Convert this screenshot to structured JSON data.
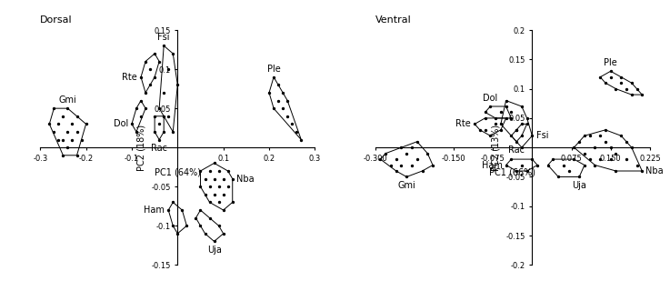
{
  "chart_data": [
    {
      "type": "scatter",
      "title": "Dorsal",
      "x_label": "PC1 (64%)",
      "y_label": "PC2 (18%)",
      "xlim": [
        -0.3,
        0.3
      ],
      "ylim": [
        -0.15,
        0.15
      ],
      "xticks": [
        -0.3,
        -0.2,
        -0.1,
        0.1,
        0.2,
        0.3
      ],
      "yticks": [
        -0.15,
        -0.1,
        -0.05,
        0.05,
        0.1,
        0.15
      ],
      "grid": false,
      "series": [
        {
          "name": "Gmi",
          "color": "#000000",
          "values": [
            [
              -0.27,
              0.02
            ],
            [
              -0.26,
              0.03
            ],
            [
              -0.25,
              0.01
            ],
            [
              -0.24,
              0.02
            ],
            [
              -0.23,
              0.03
            ],
            [
              -0.22,
              0.02
            ],
            [
              -0.25,
              0.04
            ],
            [
              -0.24,
              0.0
            ],
            [
              -0.23,
              0.01
            ],
            [
              -0.26,
              0.01
            ],
            [
              -0.22,
              0.04
            ],
            [
              -0.21,
              0.01
            ],
            [
              -0.28,
              0.03
            ],
            [
              -0.24,
              0.05
            ],
            [
              -0.25,
              -0.01
            ],
            [
              -0.22,
              -0.01
            ],
            [
              -0.2,
              0.03
            ],
            [
              -0.27,
              0.05
            ]
          ]
        },
        {
          "name": "Rte",
          "color": "#000000",
          "values": [
            [
              -0.08,
              0.09
            ],
            [
              -0.07,
              0.11
            ],
            [
              -0.06,
              0.1
            ],
            [
              -0.05,
              0.12
            ],
            [
              -0.06,
              0.08
            ],
            [
              -0.07,
              0.07
            ],
            [
              -0.05,
              0.09
            ],
            [
              -0.04,
              0.11
            ]
          ]
        },
        {
          "name": "Dol",
          "color": "#000000",
          "values": [
            [
              -0.1,
              0.03
            ],
            [
              -0.09,
              0.05
            ],
            [
              -0.08,
              0.06
            ],
            [
              -0.09,
              0.02
            ],
            [
              -0.08,
              0.04
            ],
            [
              -0.07,
              0.05
            ]
          ]
        },
        {
          "name": "Fsi",
          "color": "#000000",
          "values": [
            [
              -0.03,
              0.13
            ],
            [
              -0.01,
              0.12
            ],
            [
              -0.02,
              0.1
            ],
            [
              -0.03,
              0.07
            ],
            [
              0.0,
              0.08
            ],
            [
              -0.02,
              0.04
            ],
            [
              -0.01,
              0.02
            ],
            [
              -0.04,
              0.05
            ]
          ]
        },
        {
          "name": "Rac",
          "color": "#000000",
          "values": [
            [
              -0.05,
              0.02
            ],
            [
              -0.04,
              0.03
            ],
            [
              -0.03,
              0.02
            ],
            [
              -0.04,
              0.01
            ],
            [
              -0.05,
              0.04
            ],
            [
              -0.03,
              0.04
            ]
          ]
        },
        {
          "name": "Ple",
          "color": "#000000",
          "values": [
            [
              0.2,
              0.07
            ],
            [
              0.21,
              0.09
            ],
            [
              0.22,
              0.06
            ],
            [
              0.23,
              0.05
            ],
            [
              0.24,
              0.04
            ],
            [
              0.25,
              0.03
            ],
            [
              0.26,
              0.02
            ],
            [
              0.22,
              0.08
            ],
            [
              0.21,
              0.05
            ],
            [
              0.24,
              0.06
            ],
            [
              0.27,
              0.01
            ],
            [
              0.23,
              0.07
            ]
          ]
        },
        {
          "name": "Nba",
          "color": "#000000",
          "values": [
            [
              0.05,
              -0.03
            ],
            [
              0.06,
              -0.04
            ],
            [
              0.07,
              -0.03
            ],
            [
              0.08,
              -0.04
            ],
            [
              0.09,
              -0.05
            ],
            [
              0.1,
              -0.06
            ],
            [
              0.11,
              -0.05
            ],
            [
              0.12,
              -0.04
            ],
            [
              0.06,
              -0.06
            ],
            [
              0.07,
              -0.07
            ],
            [
              0.08,
              -0.06
            ],
            [
              0.09,
              -0.07
            ],
            [
              0.1,
              -0.04
            ],
            [
              0.11,
              -0.03
            ],
            [
              0.08,
              -0.02
            ],
            [
              0.05,
              -0.05
            ],
            [
              0.12,
              -0.07
            ],
            [
              0.07,
              -0.05
            ],
            [
              0.09,
              -0.03
            ],
            [
              0.1,
              -0.08
            ]
          ]
        },
        {
          "name": "Ham",
          "color": "#000000",
          "values": [
            [
              -0.02,
              -0.08
            ],
            [
              -0.01,
              -0.07
            ],
            [
              0.01,
              -0.08
            ],
            [
              0.02,
              -0.1
            ],
            [
              0.0,
              -0.11
            ],
            [
              -0.01,
              -0.1
            ]
          ]
        },
        {
          "name": "Uja",
          "color": "#000000",
          "values": [
            [
              0.04,
              -0.09
            ],
            [
              0.05,
              -0.08
            ],
            [
              0.07,
              -0.09
            ],
            [
              0.09,
              -0.1
            ],
            [
              0.1,
              -0.11
            ],
            [
              0.08,
              -0.12
            ],
            [
              0.06,
              -0.11
            ],
            [
              0.05,
              -0.1
            ]
          ]
        }
      ]
    },
    {
      "type": "scatter",
      "title": "Ventral",
      "x_label": "PC1 (66%)",
      "y_label": "PC2 (13%)",
      "xlim": [
        -0.3,
        0.225
      ],
      "ylim": [
        -0.2,
        0.2
      ],
      "xticks": [
        {
          "value": -0.3,
          "label": "-0.300"
        },
        {
          "value": -0.15,
          "label": "-0.150"
        },
        -0.075,
        0.075,
        {
          "value": 0.15,
          "label": "0.150"
        },
        0.225
      ],
      "yticks": [
        -0.2,
        -0.15,
        -0.1,
        -0.05,
        0.05,
        0.1,
        0.15,
        0.2
      ],
      "grid": false,
      "series": [
        {
          "name": "Gmi",
          "color": "#000000",
          "values": [
            [
              -0.29,
              -0.02
            ],
            [
              -0.28,
              -0.01
            ],
            [
              -0.27,
              -0.03
            ],
            [
              -0.26,
              -0.02
            ],
            [
              -0.25,
              0.0
            ],
            [
              -0.24,
              -0.01
            ],
            [
              -0.23,
              -0.03
            ],
            [
              -0.22,
              -0.02
            ],
            [
              -0.21,
              -0.04
            ],
            [
              -0.2,
              -0.01
            ],
            [
              -0.26,
              -0.04
            ],
            [
              -0.24,
              -0.05
            ],
            [
              -0.22,
              0.01
            ],
            [
              -0.25,
              -0.03
            ],
            [
              -0.23,
              0.0
            ],
            [
              -0.19,
              -0.03
            ]
          ]
        },
        {
          "name": "Rte",
          "color": "#000000",
          "values": [
            [
              -0.11,
              0.04
            ],
            [
              -0.1,
              0.03
            ],
            [
              -0.09,
              0.05
            ],
            [
              -0.08,
              0.02
            ],
            [
              -0.07,
              0.04
            ],
            [
              -0.06,
              0.03
            ],
            [
              -0.05,
              0.05
            ],
            [
              -0.09,
              0.03
            ]
          ]
        },
        {
          "name": "Dol",
          "color": "#000000",
          "values": [
            [
              -0.09,
              0.06
            ],
            [
              -0.08,
              0.07
            ],
            [
              -0.07,
              0.05
            ],
            [
              -0.06,
              0.06
            ],
            [
              -0.05,
              0.07
            ],
            [
              -0.04,
              0.05
            ]
          ]
        },
        {
          "name": "Fsi",
          "color": "#000000",
          "values": [
            [
              -0.06,
              0.04
            ],
            [
              -0.05,
              0.08
            ],
            [
              -0.04,
              0.06
            ],
            [
              -0.03,
              0.03
            ],
            [
              -0.02,
              0.07
            ],
            [
              -0.01,
              0.05
            ],
            [
              0.0,
              0.02
            ],
            [
              -0.02,
              0.0
            ]
          ]
        },
        {
          "name": "Rac",
          "color": "#000000",
          "values": [
            [
              -0.04,
              0.02
            ],
            [
              -0.03,
              0.03
            ],
            [
              -0.02,
              0.02
            ],
            [
              -0.03,
              0.01
            ],
            [
              -0.01,
              0.04
            ],
            [
              -0.02,
              0.04
            ]
          ]
        },
        {
          "name": "Ple",
          "color": "#000000",
          "values": [
            [
              0.13,
              0.12
            ],
            [
              0.14,
              0.11
            ],
            [
              0.15,
              0.12
            ],
            [
              0.16,
              0.1
            ],
            [
              0.17,
              0.11
            ],
            [
              0.18,
              0.1
            ],
            [
              0.19,
              0.09
            ],
            [
              0.2,
              0.1
            ],
            [
              0.21,
              0.09
            ],
            [
              0.15,
              0.13
            ],
            [
              0.17,
              0.12
            ],
            [
              0.19,
              0.11
            ]
          ]
        },
        {
          "name": "Nba",
          "color": "#000000",
          "values": [
            [
              0.08,
              0.0
            ],
            [
              0.09,
              0.01
            ],
            [
              0.1,
              -0.01
            ],
            [
              0.11,
              0.02
            ],
            [
              0.12,
              0.0
            ],
            [
              0.13,
              -0.02
            ],
            [
              0.14,
              0.01
            ],
            [
              0.15,
              0.0
            ],
            [
              0.16,
              -0.01
            ],
            [
              0.17,
              0.02
            ],
            [
              0.18,
              -0.02
            ],
            [
              0.19,
              0.0
            ],
            [
              0.2,
              -0.03
            ],
            [
              0.21,
              -0.04
            ],
            [
              0.12,
              -0.03
            ],
            [
              0.14,
              0.03
            ],
            [
              0.16,
              -0.04
            ],
            [
              0.1,
              0.02
            ],
            [
              0.15,
              -0.02
            ],
            [
              0.18,
              0.01
            ],
            [
              0.13,
              0.02
            ],
            [
              0.11,
              -0.02
            ]
          ]
        },
        {
          "name": "Ham",
          "color": "#000000",
          "values": [
            [
              -0.05,
              -0.03
            ],
            [
              -0.04,
              -0.02
            ],
            [
              -0.02,
              -0.03
            ],
            [
              0.0,
              -0.02
            ],
            [
              0.01,
              -0.03
            ],
            [
              -0.01,
              -0.04
            ],
            [
              -0.03,
              -0.04
            ]
          ]
        },
        {
          "name": "Uja",
          "color": "#000000",
          "values": [
            [
              0.03,
              -0.03
            ],
            [
              0.04,
              -0.02
            ],
            [
              0.06,
              -0.03
            ],
            [
              0.08,
              -0.02
            ],
            [
              0.1,
              -0.03
            ],
            [
              0.09,
              -0.05
            ],
            [
              0.07,
              -0.04
            ],
            [
              0.05,
              -0.05
            ]
          ]
        }
      ]
    }
  ]
}
